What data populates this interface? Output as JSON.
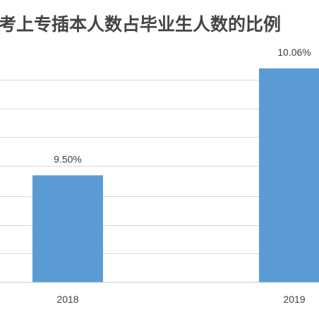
{
  "chart_data": {
    "type": "bar",
    "title": "考上专插本人数占毕业生人数的比例",
    "categories": [
      "2018",
      "2019"
    ],
    "values": [
      9.5,
      10.06
    ],
    "data_labels": [
      "9.50%",
      "10.06%"
    ],
    "ylim": [
      8.94,
      10.1
    ],
    "grid": true,
    "gridline_values": [
      9.09,
      9.24,
      9.39,
      9.55,
      9.7,
      9.85,
      10.0
    ],
    "legend": "none",
    "bar_color": "#5b9bd5",
    "xlabel": "",
    "ylabel": ""
  }
}
